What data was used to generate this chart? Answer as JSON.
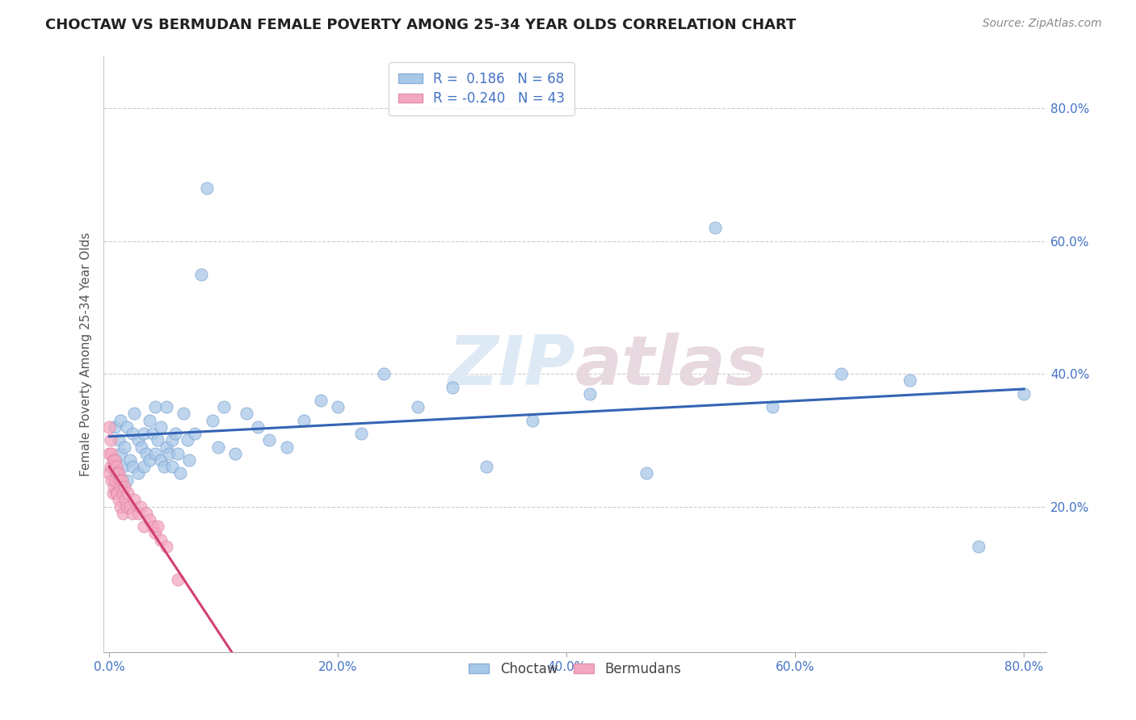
{
  "title": "CHOCTAW VS BERMUDAN FEMALE POVERTY AMONG 25-34 YEAR OLDS CORRELATION CHART",
  "source": "Source: ZipAtlas.com",
  "ylabel": "Female Poverty Among 25-34 Year Olds",
  "xlim": [
    -0.005,
    0.82
  ],
  "ylim": [
    -0.02,
    0.88
  ],
  "xticks": [
    0.0,
    0.2,
    0.4,
    0.6,
    0.8
  ],
  "xticklabels": [
    "0.0%",
    "20.0%",
    "40.0%",
    "60.0%",
    "80.0%"
  ],
  "ytick_positions": [
    0.2,
    0.4,
    0.6,
    0.8
  ],
  "yticklabels": [
    "20.0%",
    "40.0%",
    "60.0%",
    "80.0%"
  ],
  "choctaw_R": "0.186",
  "choctaw_N": "68",
  "bermudan_R": "-0.240",
  "bermudan_N": "43",
  "choctaw_color": "#a8c8e8",
  "bermudan_color": "#f4a8c0",
  "choctaw_line_color": "#3464b4",
  "bermudan_line_color": "#d04070",
  "watermark_color": "#e0e8f0",
  "background_color": "#ffffff",
  "choctaw_x": [
    0.005,
    0.005,
    0.007,
    0.008,
    0.01,
    0.01,
    0.012,
    0.013,
    0.015,
    0.015,
    0.018,
    0.02,
    0.02,
    0.022,
    0.025,
    0.025,
    0.028,
    0.03,
    0.03,
    0.032,
    0.035,
    0.035,
    0.038,
    0.04,
    0.04,
    0.042,
    0.045,
    0.045,
    0.048,
    0.05,
    0.05,
    0.052,
    0.055,
    0.055,
    0.058,
    0.06,
    0.062,
    0.065,
    0.068,
    0.07,
    0.075,
    0.08,
    0.085,
    0.09,
    0.095,
    0.1,
    0.11,
    0.12,
    0.13,
    0.14,
    0.155,
    0.17,
    0.185,
    0.2,
    0.22,
    0.24,
    0.27,
    0.3,
    0.33,
    0.37,
    0.42,
    0.47,
    0.53,
    0.58,
    0.64,
    0.7,
    0.76,
    0.8
  ],
  "choctaw_y": [
    0.27,
    0.32,
    0.25,
    0.3,
    0.28,
    0.33,
    0.26,
    0.29,
    0.24,
    0.32,
    0.27,
    0.31,
    0.26,
    0.34,
    0.3,
    0.25,
    0.29,
    0.26,
    0.31,
    0.28,
    0.33,
    0.27,
    0.31,
    0.35,
    0.28,
    0.3,
    0.27,
    0.32,
    0.26,
    0.29,
    0.35,
    0.28,
    0.3,
    0.26,
    0.31,
    0.28,
    0.25,
    0.34,
    0.3,
    0.27,
    0.31,
    0.55,
    0.68,
    0.33,
    0.29,
    0.35,
    0.28,
    0.34,
    0.32,
    0.3,
    0.29,
    0.33,
    0.36,
    0.35,
    0.31,
    0.4,
    0.35,
    0.38,
    0.26,
    0.33,
    0.37,
    0.25,
    0.62,
    0.35,
    0.4,
    0.39,
    0.14,
    0.37
  ],
  "bermudan_x": [
    0.0,
    0.0,
    0.0,
    0.001,
    0.001,
    0.002,
    0.002,
    0.003,
    0.003,
    0.004,
    0.004,
    0.005,
    0.005,
    0.006,
    0.006,
    0.007,
    0.007,
    0.008,
    0.008,
    0.009,
    0.01,
    0.01,
    0.011,
    0.012,
    0.012,
    0.013,
    0.014,
    0.015,
    0.016,
    0.018,
    0.02,
    0.022,
    0.025,
    0.027,
    0.03,
    0.032,
    0.035,
    0.038,
    0.04,
    0.042,
    0.045,
    0.05,
    0.06
  ],
  "bermudan_y": [
    0.32,
    0.28,
    0.25,
    0.3,
    0.26,
    0.28,
    0.24,
    0.27,
    0.22,
    0.26,
    0.23,
    0.27,
    0.24,
    0.26,
    0.22,
    0.25,
    0.22,
    0.25,
    0.21,
    0.24,
    0.23,
    0.2,
    0.24,
    0.22,
    0.19,
    0.23,
    0.21,
    0.2,
    0.22,
    0.2,
    0.19,
    0.21,
    0.19,
    0.2,
    0.17,
    0.19,
    0.18,
    0.17,
    0.16,
    0.17,
    0.15,
    0.14,
    0.09
  ],
  "bermudan_line_xrange": [
    0.0,
    0.18
  ],
  "choctaw_line_xrange": [
    0.0,
    0.8
  ]
}
